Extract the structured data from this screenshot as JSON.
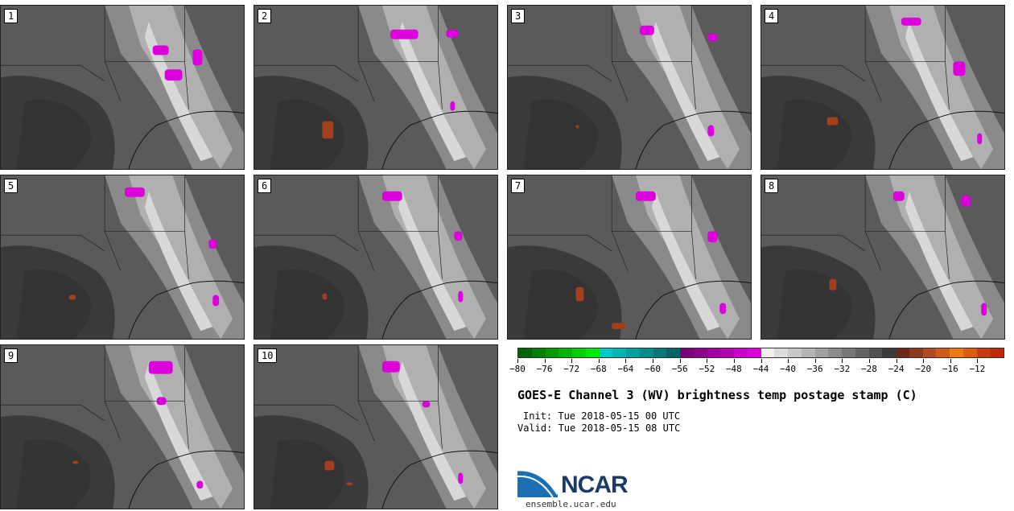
{
  "stamps": [
    {
      "label": "1",
      "cold": [
        [
          190,
          50,
          20,
          12
        ],
        [
          205,
          80,
          22,
          14
        ],
        [
          240,
          55,
          12,
          20
        ]
      ],
      "warm": []
    },
    {
      "label": "2",
      "cold": [
        [
          170,
          30,
          35,
          12
        ],
        [
          240,
          30,
          15,
          10
        ],
        [
          245,
          120,
          6,
          12
        ]
      ],
      "warm": [
        [
          85,
          145,
          14,
          22
        ]
      ]
    },
    {
      "label": "3",
      "cold": [
        [
          165,
          25,
          18,
          12
        ],
        [
          250,
          35,
          12,
          10
        ],
        [
          250,
          150,
          8,
          14
        ]
      ],
      "warm": [
        [
          85,
          150,
          4,
          4
        ]
      ]
    },
    {
      "label": "4",
      "cold": [
        [
          175,
          15,
          25,
          10
        ],
        [
          240,
          70,
          15,
          18
        ],
        [
          270,
          160,
          6,
          14
        ]
      ],
      "warm": [
        [
          82,
          140,
          14,
          10
        ]
      ]
    },
    {
      "label": "5",
      "cold": [
        [
          155,
          15,
          25,
          12
        ],
        [
          260,
          80,
          10,
          12
        ],
        [
          265,
          150,
          8,
          14
        ]
      ],
      "warm": [
        [
          85,
          150,
          9,
          6
        ]
      ]
    },
    {
      "label": "6",
      "cold": [
        [
          160,
          20,
          25,
          12
        ],
        [
          250,
          70,
          10,
          12
        ],
        [
          255,
          145,
          6,
          14
        ]
      ],
      "warm": [
        [
          85,
          148,
          6,
          8
        ]
      ]
    },
    {
      "label": "7",
      "cold": [
        [
          160,
          20,
          25,
          12
        ],
        [
          250,
          70,
          12,
          14
        ],
        [
          265,
          160,
          8,
          14
        ]
      ],
      "warm": [
        [
          85,
          140,
          10,
          18
        ],
        [
          130,
          185,
          18,
          8
        ]
      ]
    },
    {
      "label": "8",
      "cold": [
        [
          165,
          20,
          14,
          12
        ],
        [
          250,
          25,
          12,
          14
        ],
        [
          275,
          160,
          7,
          16
        ]
      ],
      "warm": [
        [
          85,
          130,
          9,
          14
        ]
      ]
    },
    {
      "label": "9",
      "cold": [
        [
          185,
          20,
          30,
          16
        ],
        [
          195,
          65,
          12,
          10
        ],
        [
          245,
          170,
          8,
          10
        ]
      ],
      "warm": [
        [
          90,
          145,
          7,
          4
        ]
      ]
    },
    {
      "label": "10",
      "cold": [
        [
          160,
          20,
          22,
          14
        ],
        [
          210,
          70,
          10,
          8
        ],
        [
          255,
          160,
          6,
          14
        ]
      ],
      "warm": [
        [
          88,
          145,
          12,
          12
        ],
        [
          115,
          172,
          8,
          4
        ]
      ]
    }
  ],
  "colorbar": {
    "colors": [
      "#006400",
      "#007f00",
      "#009a00",
      "#00b400",
      "#00cf00",
      "#00e800",
      "#00c8c8",
      "#00b4b4",
      "#00a0a0",
      "#008c8c",
      "#007878",
      "#006464",
      "#7a007a",
      "#8c008c",
      "#a000a0",
      "#b400b4",
      "#c800c8",
      "#dc00dc",
      "#f0f0f0",
      "#dcdcdc",
      "#c8c8c8",
      "#b4b4b4",
      "#a0a0a0",
      "#8c8c8c",
      "#787878",
      "#646464",
      "#505050",
      "#3c3c3c",
      "#6b2a1a",
      "#8b3a1e",
      "#b04a20",
      "#d05a18",
      "#f07810",
      "#e05a10",
      "#c83a10",
      "#c02a0a"
    ],
    "tick_labels": [
      "−80",
      "−76",
      "−72",
      "−68",
      "−64",
      "−60",
      "−56",
      "−52",
      "−48",
      "−44",
      "−40",
      "−36",
      "−32",
      "−28",
      "−24",
      "−20",
      "−16",
      "−12"
    ]
  },
  "title": "GOES-E Channel 3 (WV) brightness temp postage stamp (C)",
  "init_text": "Init: Tue 2018-05-15 00 UTC",
  "valid_text": "Valid: Tue 2018-05-15 08 UTC",
  "logo": {
    "text": "NCAR",
    "url": "ensemble.ucar.edu"
  }
}
